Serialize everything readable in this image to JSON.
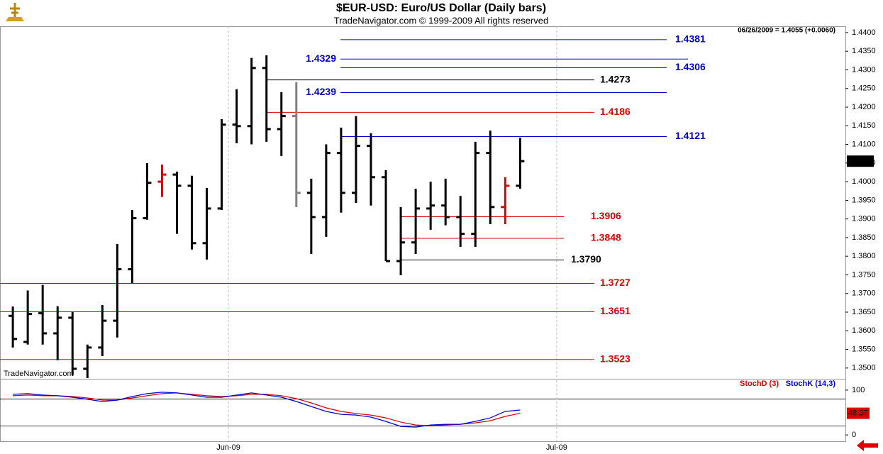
{
  "chart_data": [
    {
      "type": "ohlc",
      "title": "$EUR-USD:  Euro/US Dollar  (Daily bars)",
      "subtitle": "TradeNavigator.com © 1999-2009 All rights reserved",
      "info": "06/26/2009 = 1.4055 (+0.0060)",
      "watermark": "TradeNavigator.com",
      "categories": [
        null,
        null,
        null,
        null,
        null,
        null,
        null,
        null,
        null,
        null,
        null,
        null,
        null,
        null,
        null,
        null,
        null,
        null,
        null,
        null,
        null,
        null,
        null,
        null,
        null,
        null,
        null,
        null,
        null,
        null,
        null,
        null,
        null,
        null,
        null
      ],
      "open": [
        1.364,
        1.357,
        1.3647,
        1.3593,
        1.3635,
        1.3498,
        1.3555,
        1.3627,
        1.3765,
        1.3902,
        1.4,
        1.4019,
        1.3989,
        1.3835,
        1.3928,
        1.4153,
        1.4149,
        1.4305,
        1.4141,
        1.4176,
        1.397,
        1.3905,
        1.4077,
        1.397,
        1.4096,
        1.4012,
        1.3787,
        1.3837,
        1.3928,
        1.3936,
        1.3905,
        1.386,
        1.4077,
        1.3932,
        1.3989
      ],
      "high": [
        1.3665,
        1.3708,
        1.3723,
        1.3666,
        1.365,
        1.3563,
        1.3669,
        1.3833,
        1.3924,
        1.405,
        1.4046,
        1.4027,
        1.4016,
        1.3983,
        1.4168,
        1.4248,
        1.4332,
        1.4339,
        1.424,
        1.4267,
        1.4008,
        1.41,
        1.4145,
        1.4176,
        1.413,
        1.4031,
        1.3932,
        1.3981,
        1.4,
        1.4008,
        1.3962,
        1.4107,
        1.4137,
        1.4012,
        1.4118
      ],
      "low": [
        1.3555,
        1.3563,
        1.3563,
        1.3521,
        1.348,
        1.3473,
        1.3532,
        1.3582,
        1.3727,
        1.3898,
        1.3959,
        1.386,
        1.3818,
        1.3791,
        1.3924,
        1.4103,
        1.41,
        1.4107,
        1.4069,
        1.3932,
        1.3806,
        1.3852,
        1.3917,
        1.3943,
        1.3936,
        1.3787,
        1.3749,
        1.3806,
        1.3871,
        1.3883,
        1.3825,
        1.3825,
        1.3886,
        1.3886,
        1.3981
      ],
      "close": [
        1.3578,
        1.3645,
        1.3593,
        1.3635,
        1.3498,
        1.3555,
        1.3627,
        1.3765,
        1.3902,
        1.3997,
        1.4019,
        1.3989,
        1.3835,
        1.3928,
        1.4153,
        1.4149,
        1.4305,
        1.4141,
        1.4176,
        1.397,
        1.3905,
        1.4077,
        1.397,
        1.4096,
        1.4012,
        1.3787,
        1.3837,
        1.3928,
        1.3936,
        1.3905,
        1.386,
        1.4077,
        1.3932,
        1.3989,
        1.4055
      ],
      "colors": [
        "#000000",
        "#000000",
        "#000000",
        "#000000",
        "#000000",
        "#000000",
        "#000000",
        "#000000",
        "#000000",
        "#000000",
        "#e00000",
        "#000000",
        "#000000",
        "#000000",
        "#000000",
        "#000000",
        "#000000",
        "#000000",
        "#000000",
        "#808080",
        "#000000",
        "#000000",
        "#000000",
        "#000000",
        "#000000",
        "#000000",
        "#000000",
        "#000000",
        "#000000",
        "#000000",
        "#000000",
        "#000000",
        "#000000",
        "#e00000",
        "#000000"
      ],
      "levels": [
        {
          "value": 1.4381,
          "label": "1.4381",
          "color": "#0000cc"
        },
        {
          "value": 1.4329,
          "label": "1.4329",
          "color": "#0000cc"
        },
        {
          "value": 1.4306,
          "label": "1.4306",
          "color": "#0000cc"
        },
        {
          "value": 1.4273,
          "label": "1.4273",
          "color": "#000000"
        },
        {
          "value": 1.4239,
          "label": "1.4239",
          "color": "#0000cc"
        },
        {
          "value": 1.4186,
          "label": "1.4186",
          "color": "#dd0000"
        },
        {
          "value": 1.4121,
          "label": "1.4121",
          "color": "#0000cc"
        },
        {
          "value": 1.3906,
          "label": "1.3906",
          "color": "#dd0000"
        },
        {
          "value": 1.3848,
          "label": "1.3848",
          "color": "#dd0000"
        },
        {
          "value": 1.379,
          "label": "1.3790",
          "color": "#000000"
        },
        {
          "value": 1.3727,
          "label": "1.3727",
          "color": "#dd0000"
        },
        {
          "value": 1.3651,
          "label": "1.3651",
          "color": "#dd0000"
        },
        {
          "value": 1.3523,
          "label": "1.3523",
          "color": "#dd0000"
        }
      ],
      "xlim": [
        -0.86,
        55.8
      ],
      "ylim": [
        1.3473,
        1.4417
      ],
      "yticks": [
        {
          "value": 1.35,
          "label": "1.3500"
        },
        {
          "value": 1.355,
          "label": "1.3550"
        },
        {
          "value": 1.36,
          "label": "1.3600"
        },
        {
          "value": 1.365,
          "label": "1.3650"
        },
        {
          "value": 1.37,
          "label": "1.3700"
        },
        {
          "value": 1.375,
          "label": "1.3750"
        },
        {
          "value": 1.38,
          "label": "1.3800"
        },
        {
          "value": 1.385,
          "label": "1.3850"
        },
        {
          "value": 1.39,
          "label": "1.3900"
        },
        {
          "value": 1.395,
          "label": "1.3950"
        },
        {
          "value": 1.4,
          "label": "1.4000"
        },
        {
          "value": 1.405,
          "label": "1.4050"
        },
        {
          "value": 1.41,
          "label": "1.4100"
        },
        {
          "value": 1.415,
          "label": "1.4150"
        },
        {
          "value": 1.42,
          "label": "1.4200"
        },
        {
          "value": 1.425,
          "label": "1.4250"
        },
        {
          "value": 1.43,
          "label": "1.4300"
        },
        {
          "value": 1.435,
          "label": "1.4350"
        },
        {
          "value": 1.44,
          "label": "1.4400"
        }
      ]
    },
    {
      "type": "line",
      "series": [
        {
          "name": "StochD (3)",
          "color": "#dd0000",
          "values": [
            87.3,
            88.9,
            87.3,
            87.3,
            85.7,
            82.5,
            77.8,
            77.8,
            82.5,
            87.3,
            92.1,
            93.7,
            90.5,
            87.3,
            85.7,
            87.3,
            90.5,
            90.5,
            87.3,
            81.0,
            71.4,
            60.3,
            52.4,
            47.6,
            44.4,
            38.1,
            28.6,
            22.2,
            20.6,
            22.2,
            23.8,
            27.0,
            31.7,
            41.3,
            48.37
          ]
        },
        {
          "name": "StochK (14,3)",
          "color": "#0000dd",
          "values": [
            90.5,
            92.1,
            88.9,
            87.3,
            84.1,
            79.4,
            74.6,
            77.8,
            85.7,
            92.1,
            95.2,
            93.7,
            88.9,
            84.1,
            84.1,
            88.9,
            93.7,
            88.9,
            84.1,
            74.6,
            63.5,
            52.4,
            46.0,
            44.4,
            39.7,
            30.2,
            19.0,
            17.5,
            22.2,
            23.8,
            23.8,
            30.2,
            38.1,
            52.4,
            55.6
          ]
        }
      ],
      "hlines": [
        20,
        80
      ],
      "xlim": [
        -0.86,
        55.8
      ],
      "xticks": [
        {
          "value": 14.45,
          "label": "Jun-09"
        },
        {
          "value": 36.45,
          "label": "Jul-09"
        }
      ],
      "ylim": [
        -14,
        122
      ],
      "yticks": [
        0,
        100
      ]
    }
  ]
}
